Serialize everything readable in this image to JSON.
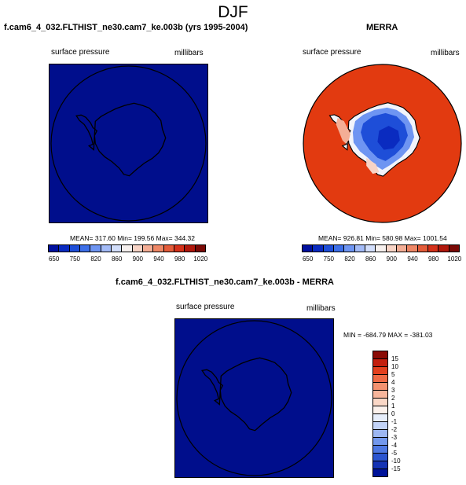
{
  "figure": {
    "title": "DJF"
  },
  "panels": [
    {
      "title": "f.cam6_4_032.FLTHIST_ne30.cam7_ke.003b (yrs 1995-2004)",
      "left_label": "surface pressure",
      "right_label": "millibars",
      "stats": "MEAN= 317.60  Min= 199.56  Max= 344.32",
      "fill_color": "#000E8C"
    },
    {
      "title": "MERRA",
      "left_label": "surface pressure",
      "right_label": "millibars",
      "stats": "MEAN= 926.81  Min= 580.98  Max= 1001.54",
      "fill_color": "#E23A10"
    },
    {
      "title": "f.cam6_4_032.FLTHIST_ne30.cam7_ke.003b - MERRA",
      "left_label": "surface pressure",
      "right_label": "millibars",
      "stats": "MIN = -684.79  MAX = -381.03",
      "fill_color": "#000E8C"
    }
  ],
  "colorbar_abs": {
    "labels": [
      "650",
      "750",
      "820",
      "860",
      "900",
      "940",
      "980",
      "1020"
    ],
    "colors": [
      "#00109E",
      "#0A2BC0",
      "#1E4ED8",
      "#3D6FE8",
      "#6E95F2",
      "#A3BBF7",
      "#D2DEFB",
      "#F6F0EE",
      "#F8D4C6",
      "#F4AE96",
      "#EE8766",
      "#E45C3A",
      "#D4311A",
      "#B0180C",
      "#7A0A06"
    ]
  },
  "colorbar_diff": {
    "labels": [
      "15",
      "10",
      "5",
      "4",
      "3",
      "2",
      "1",
      "0",
      "-1",
      "-2",
      "-3",
      "-4",
      "-5",
      "-10",
      "-15"
    ],
    "colors": [
      "#8A0B05",
      "#C31F0E",
      "#E2401E",
      "#EE6A45",
      "#F39270",
      "#F7B59B",
      "#FAD7C6",
      "#FBF1EC",
      "#E7EEFB",
      "#C2D3F7",
      "#9DB7F2",
      "#7398EC",
      "#4E78E2",
      "#2B55D0",
      "#1533B4",
      "#00139A"
    ]
  }
}
